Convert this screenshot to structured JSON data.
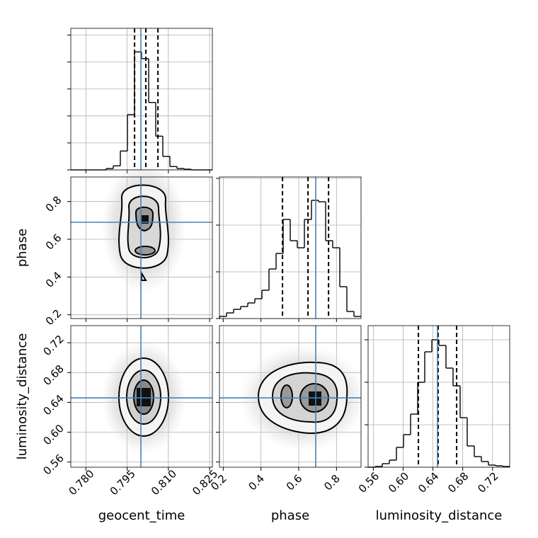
{
  "chart_data": {
    "type": "corner",
    "truth_color": "#4682b4",
    "hist_color": "#000000",
    "grid": true,
    "parameters": [
      {
        "name": "geocent_time",
        "lim": [
          0.7745,
          0.826
        ],
        "ticks": [
          {
            "value": 0.78,
            "label": "0.780"
          },
          0.795,
          {
            "value": 0.81,
            "label": "0.810"
          },
          0.825
        ],
        "truth": 0.8,
        "quantiles": [
          0.7977,
          0.8018,
          0.8062
        ],
        "bins": [
          0.7745,
          0.777075,
          0.77965,
          0.782225,
          0.7848,
          0.787375,
          0.78995,
          0.792525,
          0.7951,
          0.797675,
          0.80025,
          0.802825,
          0.8054,
          0.807975,
          0.81055,
          0.813125,
          0.8157,
          0.818275,
          0.82085,
          0.823425,
          0.826
        ],
        "counts": [
          0,
          0,
          0,
          0,
          0,
          2,
          6,
          28,
          82,
          175,
          165,
          100,
          50,
          20,
          5,
          2,
          1,
          0,
          0,
          0
        ],
        "hist_ylim": [
          0,
          210
        ],
        "hist_yticks": [
          0,
          40,
          80,
          120,
          160,
          200
        ]
      },
      {
        "name": "phase",
        "lim": [
          0.18,
          0.93
        ],
        "ticks": [
          0.2,
          0.4,
          0.6,
          0.8
        ],
        "truth": 0.69,
        "quantiles": [
          0.514,
          0.649,
          0.758
        ],
        "bins": [
          0.18,
          0.2175,
          0.255,
          0.2925,
          0.33,
          0.3675,
          0.405,
          0.4425,
          0.48,
          0.5175,
          0.555,
          0.5925,
          0.63,
          0.6675,
          0.705,
          0.7425,
          0.78,
          0.8175,
          0.855,
          0.8925,
          0.93
        ],
        "counts": [
          3,
          8,
          13,
          17,
          22,
          28,
          40,
          70,
          92,
          140,
          110,
          100,
          140,
          167,
          165,
          110,
          100,
          45,
          10,
          3
        ],
        "hist_ylim": [
          0,
          200
        ],
        "hist_yticks": [
          0,
          66,
          132,
          198
        ]
      },
      {
        "name": "luminosity_distance",
        "lim": [
          0.553,
          0.743
        ],
        "ticks": [
          0.56,
          {
            "value": 0.6,
            "label": "0.60"
          },
          0.64,
          0.68,
          0.72
        ],
        "truth": 0.646,
        "quantiles": [
          0.6205,
          0.647,
          0.6718
        ],
        "bins": [
          0.553,
          0.5625,
          0.572,
          0.5815,
          0.591,
          0.6005,
          0.61,
          0.6195,
          0.629,
          0.6385,
          0.648,
          0.6575,
          0.667,
          0.6765,
          0.686,
          0.6955,
          0.705,
          0.7145,
          0.724,
          0.7335,
          0.743
        ],
        "counts": [
          0,
          1,
          5,
          10,
          28,
          46,
          75,
          120,
          163,
          180,
          172,
          140,
          115,
          70,
          30,
          15,
          8,
          3,
          2,
          1
        ],
        "hist_ylim": [
          0,
          200
        ],
        "hist_yticks": [
          0,
          60,
          120,
          180
        ]
      }
    ]
  }
}
